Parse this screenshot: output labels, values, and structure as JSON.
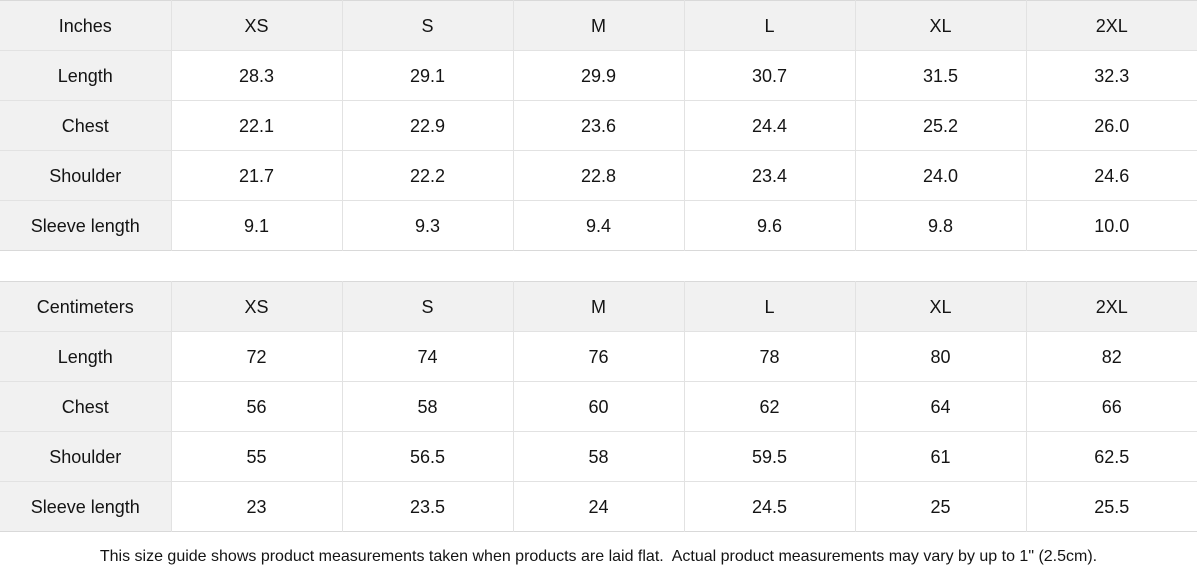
{
  "size_guide": {
    "tables": [
      {
        "unit": "inches",
        "header": [
          "Inches",
          "XS",
          "S",
          "M",
          "L",
          "XL",
          "2XL"
        ],
        "rows": [
          {
            "label": "Length",
            "values": [
              "28.3",
              "29.1",
              "29.9",
              "30.7",
              "31.5",
              "32.3"
            ]
          },
          {
            "label": "Chest",
            "values": [
              "22.1",
              "22.9",
              "23.6",
              "24.4",
              "25.2",
              "26.0"
            ]
          },
          {
            "label": "Shoulder",
            "values": [
              "21.7",
              "22.2",
              "22.8",
              "23.4",
              "24.0",
              "24.6"
            ]
          },
          {
            "label": "Sleeve length",
            "values": [
              "9.1",
              "9.3",
              "9.4",
              "9.6",
              "9.8",
              "10.0"
            ]
          }
        ]
      },
      {
        "unit": "centimeters",
        "header": [
          "Centimeters",
          "XS",
          "S",
          "M",
          "L",
          "XL",
          "2XL"
        ],
        "rows": [
          {
            "label": "Length",
            "values": [
              "72",
              "74",
              "76",
              "78",
              "80",
              "82"
            ]
          },
          {
            "label": "Chest",
            "values": [
              "56",
              "58",
              "60",
              "62",
              "64",
              "66"
            ]
          },
          {
            "label": "Shoulder",
            "values": [
              "55",
              "56.5",
              "58",
              "59.5",
              "61",
              "62.5"
            ]
          },
          {
            "label": "Sleeve length",
            "values": [
              "23",
              "23.5",
              "24",
              "24.5",
              "25",
              "25.5"
            ]
          }
        ]
      }
    ],
    "note": "This size guide shows product measurements taken when products are laid flat.  Actual product measurements may vary by up to 1\" (2.5cm).",
    "colors": {
      "header_bg": "#f1f1f1",
      "cell_bg": "#ffffff",
      "border": "#e2e2e2",
      "outer_border": "#d9d9d9",
      "text": "#141414"
    }
  }
}
